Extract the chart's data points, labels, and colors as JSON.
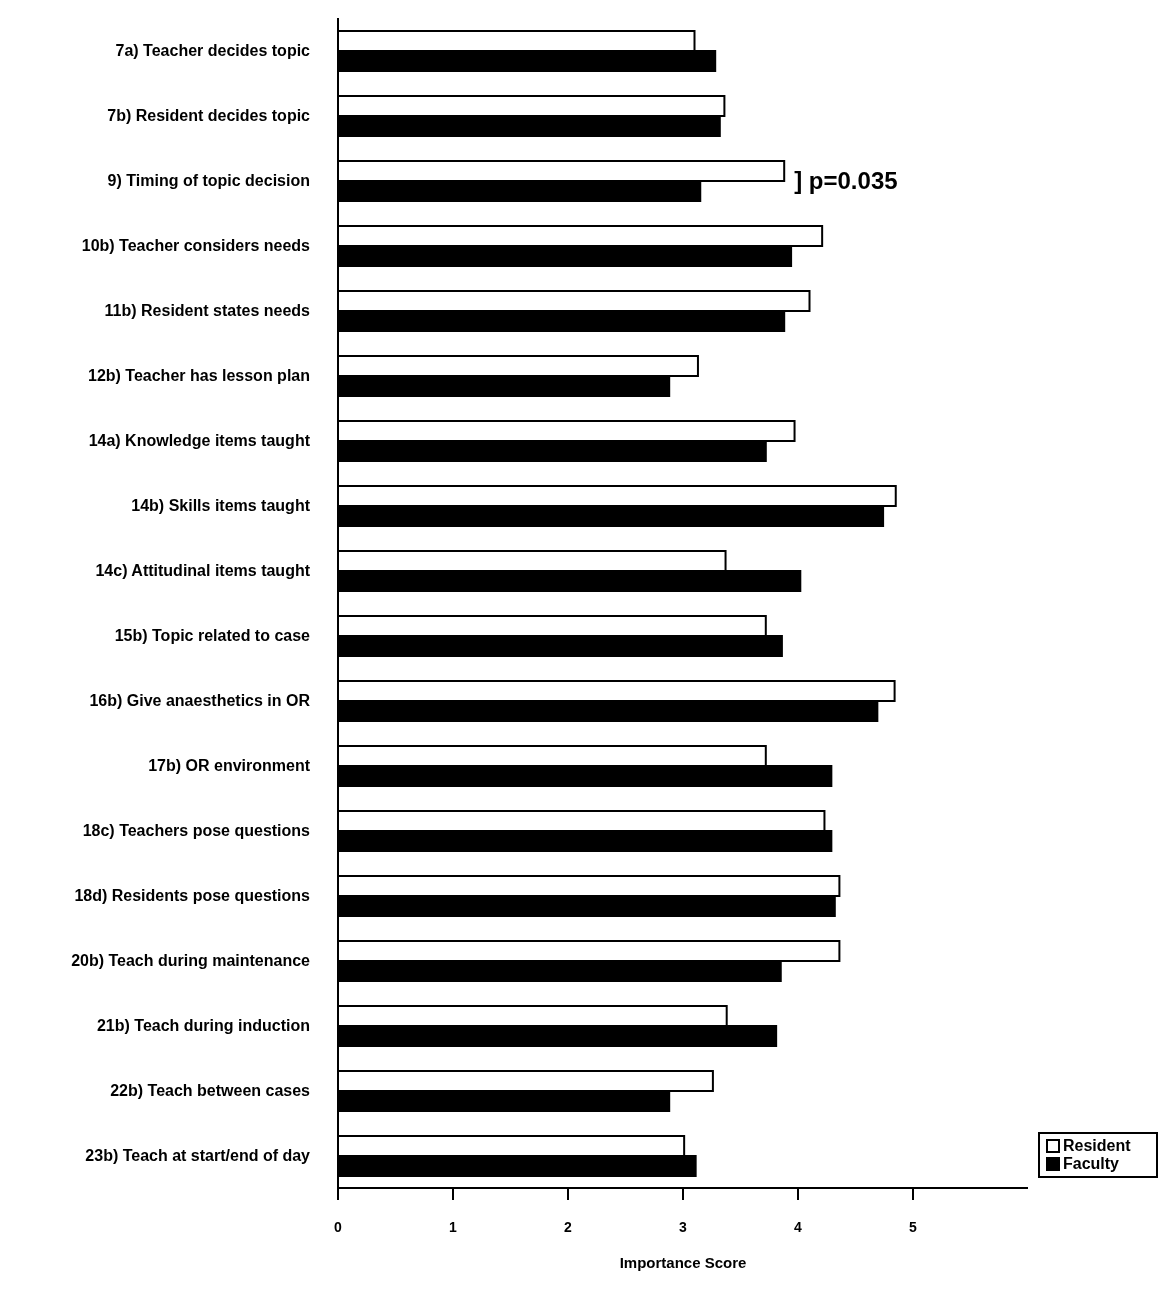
{
  "chart_data": {
    "type": "bar",
    "orientation": "horizontal",
    "categories": [
      "7a)  Teacher decides topic",
      "7b)  Resident decides topic",
      "9)  Timing of topic decision",
      "10b)  Teacher considers needs",
      "11b)  Resident states needs",
      "12b)  Teacher has lesson plan",
      "14a)  Knowledge items taught",
      "14b)  Skills items taught",
      "14c)  Attitudinal items taught",
      "15b)  Topic related to case",
      "16b)  Give anaesthetics in OR",
      "17b)  OR environment",
      "18c)  Teachers pose questions",
      "18d)  Residents pose questions",
      "20b)  Teach during maintenance",
      "21b)  Teach during induction",
      "22b)  Teach between cases",
      "23b)  Teach at start/end of day"
    ],
    "series": [
      {
        "name": "Resident",
        "color": "#ffffff",
        "values": [
          3.1,
          3.36,
          3.88,
          4.21,
          4.1,
          3.13,
          3.97,
          4.85,
          3.37,
          3.72,
          4.84,
          3.72,
          4.23,
          4.36,
          4.36,
          3.38,
          3.26,
          3.01
        ]
      },
      {
        "name": "Faculty",
        "color": "#000000",
        "values": [
          3.28,
          3.32,
          3.15,
          3.94,
          3.88,
          2.88,
          3.72,
          4.74,
          4.02,
          3.86,
          4.69,
          4.29,
          4.29,
          4.32,
          3.85,
          3.81,
          2.88,
          3.11
        ]
      }
    ],
    "xlim": [
      0,
      6
    ],
    "xticks": [
      0,
      1,
      2,
      3,
      4,
      5
    ],
    "xlabel": "Importance Score",
    "annotations": [
      {
        "text": "] p=0.035",
        "x": 3.88,
        "y": "9)  Timing of topic decision"
      }
    ],
    "legend": "bottom right",
    "grid": false
  }
}
